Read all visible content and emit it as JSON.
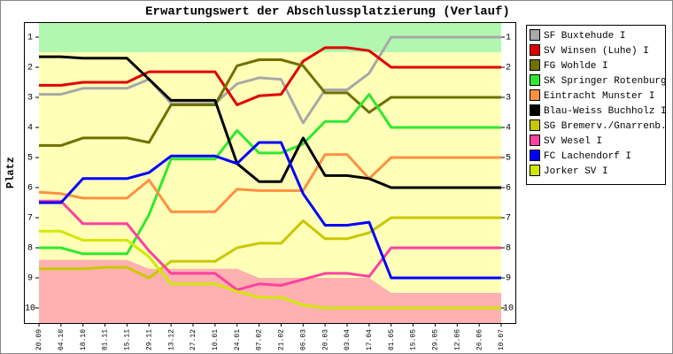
{
  "chart_data": {
    "type": "line",
    "title": "Erwartungswert der Abschlussplatzierung (Verlauf)",
    "y_label": "Platz",
    "categories": [
      "20.09",
      "04.10",
      "18.10",
      "01.11",
      "15.11",
      "29.11",
      "13.12",
      "27.12",
      "10.01",
      "24.01",
      "07.02",
      "21.02",
      "06.03",
      "20.03",
      "03.04",
      "17.04",
      "01.05",
      "15.05",
      "29.05",
      "12.06",
      "26.06",
      "10.07"
    ],
    "ylim": [
      0.5,
      10.5
    ],
    "y_inverted": true,
    "yticks": [
      1,
      2,
      3,
      4,
      5,
      6,
      7,
      8,
      9,
      10
    ],
    "y2lim": [
      0.5,
      10.5
    ],
    "y2ticks": [
      1,
      2,
      3,
      4,
      5,
      6,
      7,
      8,
      9,
      10
    ],
    "zones": {
      "promotion_limit": 1.5,
      "promotion_color": "#b0f8b0",
      "middle_color": "#ffffb8",
      "relegation_color": "#ffb0b0",
      "relegation_limit": [
        8.4,
        8.4,
        8.4,
        8.4,
        8.4,
        8.7,
        8.7,
        8.7,
        8.7,
        8.7,
        9.0,
        9.0,
        9.0,
        9.0,
        9.0,
        9.0,
        9.5,
        9.5,
        9.5,
        9.5,
        9.5,
        9.5
      ]
    },
    "legend": "outside-right",
    "series": [
      {
        "name": "SF Buxtehude I",
        "color": "#a8a8a8",
        "values": [
          2.9,
          2.9,
          2.7,
          2.7,
          2.7,
          2.4,
          3.2,
          3.2,
          3.2,
          2.55,
          2.35,
          2.4,
          3.85,
          2.75,
          2.75,
          2.2,
          1.0,
          1.0,
          1.0,
          1.0,
          1.0,
          1.0
        ]
      },
      {
        "name": "SV Winsen (Luhe) I",
        "color": "#e00000",
        "values": [
          2.6,
          2.6,
          2.5,
          2.5,
          2.5,
          2.15,
          2.15,
          2.15,
          2.15,
          3.25,
          2.95,
          2.9,
          1.8,
          1.35,
          1.35,
          1.45,
          2.0,
          2.0,
          2.0,
          2.0,
          2.0,
          2.0
        ]
      },
      {
        "name": "FG Wohlde I",
        "color": "#707000",
        "values": [
          4.6,
          4.6,
          4.35,
          4.35,
          4.35,
          4.5,
          3.25,
          3.25,
          3.25,
          1.95,
          1.75,
          1.75,
          1.95,
          2.85,
          2.85,
          3.5,
          3.0,
          3.0,
          3.0,
          3.0,
          3.0,
          3.0
        ]
      },
      {
        "name": "SK Springer Rotenburg I",
        "color": "#30e830",
        "values": [
          8.0,
          8.0,
          8.2,
          8.2,
          8.2,
          6.9,
          5.05,
          5.05,
          5.05,
          4.1,
          4.85,
          4.85,
          4.55,
          3.8,
          3.8,
          2.9,
          4.0,
          4.0,
          4.0,
          4.0,
          4.0,
          4.0
        ]
      },
      {
        "name": "Eintracht Munster I",
        "color": "#ff9040",
        "values": [
          6.15,
          6.2,
          6.35,
          6.35,
          6.35,
          5.75,
          6.8,
          6.8,
          6.8,
          6.05,
          6.1,
          6.1,
          6.1,
          4.9,
          4.9,
          5.7,
          5.0,
          5.0,
          5.0,
          5.0,
          5.0,
          5.0
        ]
      },
      {
        "name": "Blau-Weiss Buchholz I",
        "color": "#000000",
        "values": [
          1.65,
          1.65,
          1.7,
          1.7,
          1.7,
          2.4,
          3.1,
          3.1,
          3.1,
          5.2,
          5.8,
          5.8,
          4.35,
          5.6,
          5.6,
          5.7,
          6.0,
          6.0,
          6.0,
          6.0,
          6.0,
          6.0
        ]
      },
      {
        "name": "SG Bremerv./Gnarrenb.",
        "color": "#c8c800",
        "values": [
          8.7,
          8.7,
          8.7,
          8.65,
          8.65,
          9.0,
          8.45,
          8.45,
          8.45,
          8.0,
          7.85,
          7.85,
          7.1,
          7.7,
          7.7,
          7.5,
          7.0,
          7.0,
          7.0,
          7.0,
          7.0,
          7.0
        ]
      },
      {
        "name": "SV Wesel I",
        "color": "#ff40a0",
        "values": [
          6.45,
          6.45,
          7.2,
          7.2,
          7.2,
          8.1,
          8.85,
          8.85,
          8.85,
          9.4,
          9.2,
          9.25,
          9.05,
          8.85,
          8.85,
          8.95,
          8.0,
          8.0,
          8.0,
          8.0,
          8.0,
          8.0
        ]
      },
      {
        "name": "FC Lachendorf I",
        "color": "#0000ff",
        "values": [
          6.5,
          6.5,
          5.7,
          5.7,
          5.7,
          5.5,
          4.95,
          4.95,
          4.95,
          5.2,
          4.5,
          4.5,
          6.2,
          7.25,
          7.25,
          7.15,
          9.0,
          9.0,
          9.0,
          9.0,
          9.0,
          9.0
        ]
      },
      {
        "name": "Jorker SV I",
        "color": "#d0e800",
        "values": [
          7.45,
          7.45,
          7.75,
          7.75,
          7.75,
          8.3,
          9.2,
          9.2,
          9.2,
          9.45,
          9.65,
          9.65,
          9.9,
          10.0,
          10.0,
          10.0,
          10.0,
          10.0,
          10.0,
          10.0,
          10.0,
          10.0
        ]
      }
    ]
  }
}
